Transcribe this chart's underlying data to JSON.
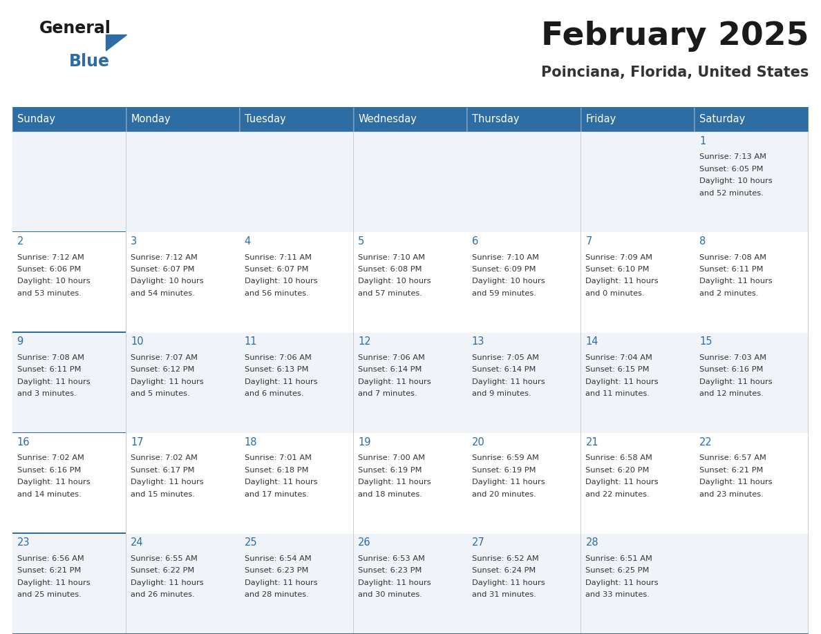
{
  "title": "February 2025",
  "subtitle": "Poinciana, Florida, United States",
  "header_bg": "#2e6da4",
  "header_text": "#ffffff",
  "cell_bg_odd": "#f0f4f8",
  "cell_bg_even": "#ffffff",
  "border_color": "#2e6da4",
  "row_border_color": "#2e6da4",
  "text_color": "#333333",
  "day_number_color": "#2e6da4",
  "days_of_week": [
    "Sunday",
    "Monday",
    "Tuesday",
    "Wednesday",
    "Thursday",
    "Friday",
    "Saturday"
  ],
  "calendar_data": [
    [
      null,
      null,
      null,
      null,
      null,
      null,
      {
        "day": 1,
        "sunrise": "7:13 AM",
        "sunset": "6:05 PM",
        "daylight": "10 hours\nand 52 minutes."
      }
    ],
    [
      {
        "day": 2,
        "sunrise": "7:12 AM",
        "sunset": "6:06 PM",
        "daylight": "10 hours\nand 53 minutes."
      },
      {
        "day": 3,
        "sunrise": "7:12 AM",
        "sunset": "6:07 PM",
        "daylight": "10 hours\nand 54 minutes."
      },
      {
        "day": 4,
        "sunrise": "7:11 AM",
        "sunset": "6:07 PM",
        "daylight": "10 hours\nand 56 minutes."
      },
      {
        "day": 5,
        "sunrise": "7:10 AM",
        "sunset": "6:08 PM",
        "daylight": "10 hours\nand 57 minutes."
      },
      {
        "day": 6,
        "sunrise": "7:10 AM",
        "sunset": "6:09 PM",
        "daylight": "10 hours\nand 59 minutes."
      },
      {
        "day": 7,
        "sunrise": "7:09 AM",
        "sunset": "6:10 PM",
        "daylight": "11 hours\nand 0 minutes."
      },
      {
        "day": 8,
        "sunrise": "7:08 AM",
        "sunset": "6:11 PM",
        "daylight": "11 hours\nand 2 minutes."
      }
    ],
    [
      {
        "day": 9,
        "sunrise": "7:08 AM",
        "sunset": "6:11 PM",
        "daylight": "11 hours\nand 3 minutes."
      },
      {
        "day": 10,
        "sunrise": "7:07 AM",
        "sunset": "6:12 PM",
        "daylight": "11 hours\nand 5 minutes."
      },
      {
        "day": 11,
        "sunrise": "7:06 AM",
        "sunset": "6:13 PM",
        "daylight": "11 hours\nand 6 minutes."
      },
      {
        "day": 12,
        "sunrise": "7:06 AM",
        "sunset": "6:14 PM",
        "daylight": "11 hours\nand 7 minutes."
      },
      {
        "day": 13,
        "sunrise": "7:05 AM",
        "sunset": "6:14 PM",
        "daylight": "11 hours\nand 9 minutes."
      },
      {
        "day": 14,
        "sunrise": "7:04 AM",
        "sunset": "6:15 PM",
        "daylight": "11 hours\nand 11 minutes."
      },
      {
        "day": 15,
        "sunrise": "7:03 AM",
        "sunset": "6:16 PM",
        "daylight": "11 hours\nand 12 minutes."
      }
    ],
    [
      {
        "day": 16,
        "sunrise": "7:02 AM",
        "sunset": "6:16 PM",
        "daylight": "11 hours\nand 14 minutes."
      },
      {
        "day": 17,
        "sunrise": "7:02 AM",
        "sunset": "6:17 PM",
        "daylight": "11 hours\nand 15 minutes."
      },
      {
        "day": 18,
        "sunrise": "7:01 AM",
        "sunset": "6:18 PM",
        "daylight": "11 hours\nand 17 minutes."
      },
      {
        "day": 19,
        "sunrise": "7:00 AM",
        "sunset": "6:19 PM",
        "daylight": "11 hours\nand 18 minutes."
      },
      {
        "day": 20,
        "sunrise": "6:59 AM",
        "sunset": "6:19 PM",
        "daylight": "11 hours\nand 20 minutes."
      },
      {
        "day": 21,
        "sunrise": "6:58 AM",
        "sunset": "6:20 PM",
        "daylight": "11 hours\nand 22 minutes."
      },
      {
        "day": 22,
        "sunrise": "6:57 AM",
        "sunset": "6:21 PM",
        "daylight": "11 hours\nand 23 minutes."
      }
    ],
    [
      {
        "day": 23,
        "sunrise": "6:56 AM",
        "sunset": "6:21 PM",
        "daylight": "11 hours\nand 25 minutes."
      },
      {
        "day": 24,
        "sunrise": "6:55 AM",
        "sunset": "6:22 PM",
        "daylight": "11 hours\nand 26 minutes."
      },
      {
        "day": 25,
        "sunrise": "6:54 AM",
        "sunset": "6:23 PM",
        "daylight": "11 hours\nand 28 minutes."
      },
      {
        "day": 26,
        "sunrise": "6:53 AM",
        "sunset": "6:23 PM",
        "daylight": "11 hours\nand 30 minutes."
      },
      {
        "day": 27,
        "sunrise": "6:52 AM",
        "sunset": "6:24 PM",
        "daylight": "11 hours\nand 31 minutes."
      },
      {
        "day": 28,
        "sunrise": "6:51 AM",
        "sunset": "6:25 PM",
        "daylight": "11 hours\nand 33 minutes."
      },
      null
    ]
  ]
}
